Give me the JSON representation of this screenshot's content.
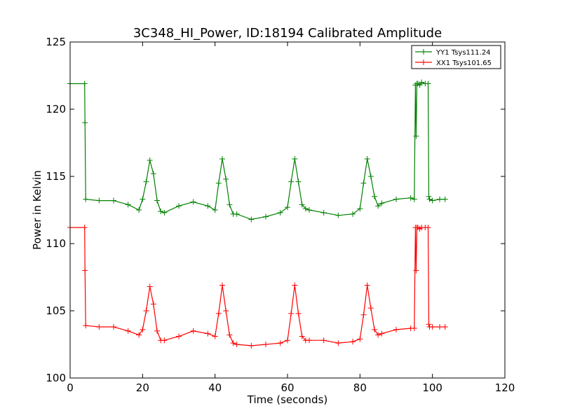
{
  "chart_data": {
    "type": "line",
    "title": "3C348_HI_Power, ID:18194 Calibrated Amplitude",
    "xlabel": "Time (seconds)",
    "ylabel": "Power in Kelvin",
    "xlim": [
      0,
      120
    ],
    "ylim": [
      100,
      125
    ],
    "xticks": [
      0,
      20,
      40,
      60,
      80,
      100,
      120
    ],
    "yticks": [
      100,
      105,
      110,
      115,
      120,
      125
    ],
    "grid": false,
    "legend_position": "top-right",
    "series": [
      {
        "name": "YY1 Tsys111.24",
        "color": "#008000",
        "marker": "+",
        "x": [
          0,
          4,
          4.1,
          4.3,
          8,
          12,
          16,
          19,
          20,
          21,
          22,
          23,
          24,
          25,
          26,
          30,
          34,
          38,
          40,
          41,
          42,
          43,
          44,
          45,
          46,
          50,
          54,
          58,
          60,
          61,
          62,
          63,
          64,
          65,
          66,
          70,
          74,
          78,
          80,
          81,
          82,
          83,
          84,
          85,
          86,
          90,
          94,
          95,
          95.3,
          95.5,
          95.7,
          96,
          96.5,
          97,
          98,
          98.8,
          99,
          99.2,
          100,
          102,
          103.5
        ],
        "y": [
          121.9,
          121.9,
          119,
          113.3,
          113.2,
          113.2,
          112.9,
          112.5,
          113.3,
          114.6,
          116.2,
          115.2,
          113.2,
          112.4,
          112.3,
          112.8,
          113.1,
          112.8,
          112.5,
          114.5,
          116.3,
          114.8,
          112.9,
          112.2,
          112.2,
          111.8,
          112.0,
          112.3,
          112.7,
          114.6,
          116.3,
          114.6,
          112.9,
          112.6,
          112.5,
          112.3,
          112.1,
          112.2,
          112.6,
          114.5,
          116.3,
          115.0,
          113.5,
          112.8,
          113.0,
          113.3,
          113.4,
          113.3,
          121.8,
          118,
          121.9,
          121.9,
          121.8,
          122.0,
          121.9,
          121.9,
          113.5,
          113.3,
          113.2,
          113.3,
          113.3
        ]
      },
      {
        "name": "XX1 Tsys101.65",
        "color": "#ff0000",
        "marker": "+",
        "x": [
          0,
          4,
          4.1,
          4.3,
          8,
          12,
          16,
          19,
          20,
          21,
          22,
          23,
          24,
          25,
          26,
          30,
          34,
          38,
          40,
          41,
          42,
          43,
          44,
          45,
          46,
          50,
          54,
          58,
          60,
          61,
          62,
          63,
          64,
          65,
          66,
          70,
          74,
          78,
          80,
          81,
          82,
          83,
          84,
          85,
          86,
          90,
          94,
          95,
          95.3,
          95.5,
          95.7,
          96,
          96.5,
          97,
          98,
          98.8,
          99,
          99.2,
          100,
          102,
          103.5
        ],
        "y": [
          111.2,
          111.2,
          108,
          103.9,
          103.8,
          103.8,
          103.5,
          103.2,
          103.6,
          105.0,
          106.8,
          105.5,
          103.5,
          102.8,
          102.8,
          103.1,
          103.5,
          103.3,
          103.1,
          104.8,
          106.9,
          105.0,
          103.2,
          102.6,
          102.5,
          102.4,
          102.5,
          102.6,
          102.8,
          104.8,
          106.9,
          104.8,
          103.1,
          102.8,
          102.8,
          102.8,
          102.6,
          102.7,
          102.9,
          104.7,
          106.9,
          105.2,
          103.6,
          103.2,
          103.3,
          103.6,
          103.7,
          103.7,
          111.2,
          108,
          111.2,
          111.2,
          111.1,
          111.2,
          111.2,
          111.2,
          104.0,
          103.8,
          103.8,
          103.8,
          103.8
        ]
      }
    ]
  }
}
